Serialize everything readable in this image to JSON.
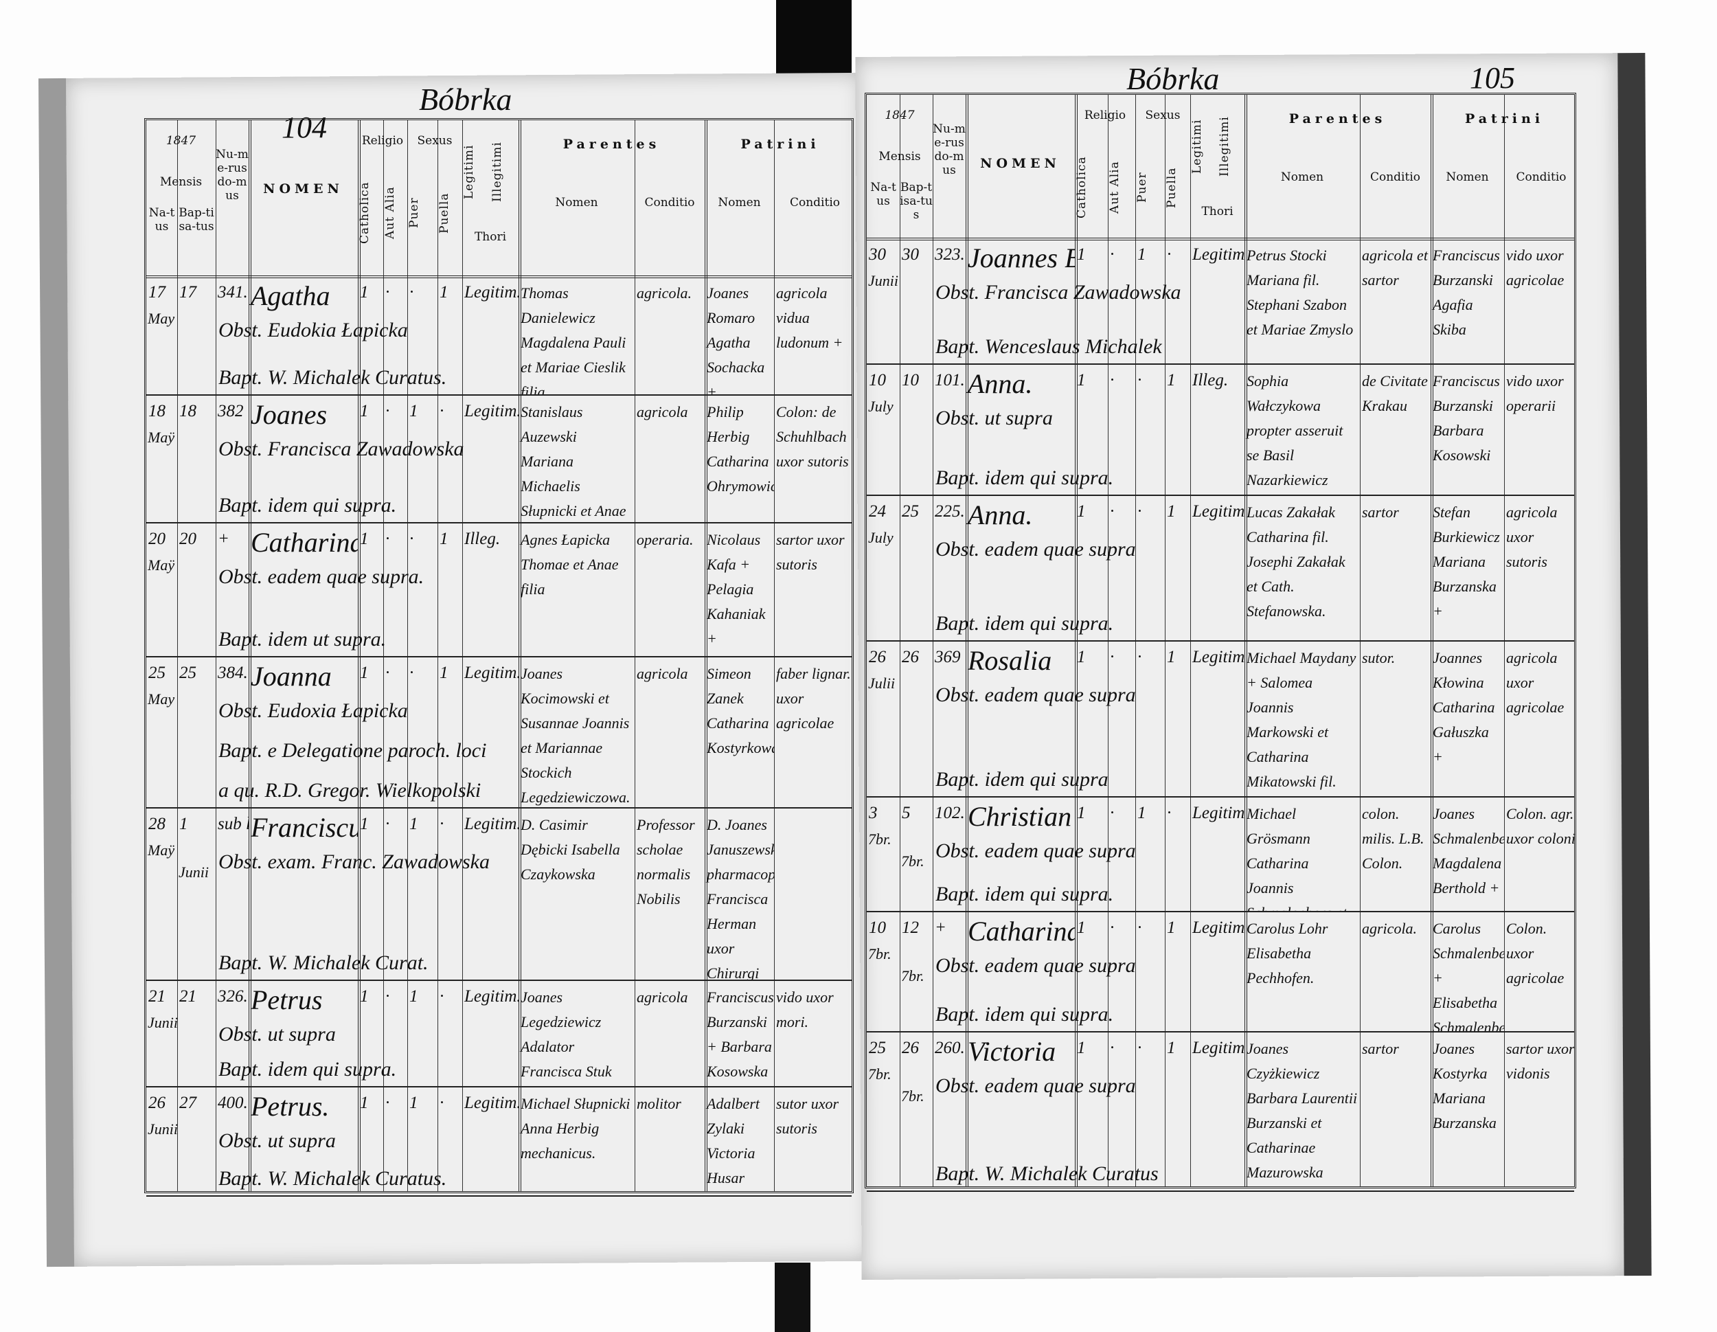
{
  "header": {
    "year": "1847",
    "mensis": "Mensis",
    "natus": "Na-tus",
    "baptisatus": "Bap-tisa-tus",
    "numerus_domus": "Nu-me-rus do-mus",
    "nomen": "NOMEN",
    "religio": "Religio",
    "catholica": "Catholica",
    "aut_alia": "Aut Alia",
    "sexus": "Sexus",
    "puer": "Puer",
    "puella": "Puella",
    "legitimi": "Legitimi",
    "illegitimi": "Illegitimi",
    "thori": "Thori",
    "parentes": "Parentes",
    "patrini": "Patrini",
    "col_nomen": "Nomen",
    "col_conditio": "Conditio"
  },
  "pages": [
    {
      "title": "Bóbrka",
      "page_number": "104",
      "entries": [
        {
          "natus": "17",
          "month": "May",
          "baptisatus": "17",
          "domus": "341.",
          "nomen": "Agatha",
          "catholica": "1",
          "aut_alia": "·",
          "puer": "·",
          "puella": "1",
          "thori": "Legitim.",
          "notes": [
            "Obst. Eudokia Łapicka",
            "Bapt. W. Michalek Curatus."
          ],
          "parentes_nomen": "Thomas Danielewicz Magdalena Pauli et Mariae Cieslik filia",
          "parentes_conditio": "agricola.",
          "patrini_nomen": "Joanes Romaro Agatha Sochacka +",
          "patrini_conditio": "agricola vidua ludonum +"
        },
        {
          "natus": "18",
          "month": "Maÿ",
          "baptisatus": "18",
          "domus": "382",
          "nomen": "Joanes",
          "catholica": "1",
          "aut_alia": "·",
          "puer": "1",
          "puella": "·",
          "thori": "Legitim.",
          "notes": [
            "Obst. Francisca Zawadowska",
            "Bapt. idem qui supra."
          ],
          "parentes_nomen": "Stanislaus Auzewski Mariana Michaelis Słupnicki et Anae Herbig filia",
          "parentes_conditio": "agricola",
          "patrini_nomen": "Philip Herbig Catharina Ohrymowicz",
          "patrini_conditio": "Colon: de Schuhlbach uxor sutoris"
        },
        {
          "natus": "20",
          "month": "Maÿ",
          "baptisatus": "20",
          "domus": "+",
          "nomen": "Catharina",
          "catholica": "1",
          "aut_alia": "·",
          "puer": "·",
          "puella": "1",
          "thori": "Illeg.",
          "notes": [
            "Obst. eadem quae supra.",
            "Bapt. idem ut supra."
          ],
          "parentes_nomen": "Agnes Łapicka Thomae et Anae filia",
          "parentes_conditio": "operaria.",
          "patrini_nomen": "Nicolaus Kafa + Pelagia Kahaniak +",
          "patrini_conditio": "sartor uxor sutoris"
        },
        {
          "natus": "25",
          "month": "May",
          "baptisatus": "25",
          "domus": "384.",
          "nomen": "Joanna",
          "catholica": "1",
          "aut_alia": "·",
          "puer": "·",
          "puella": "1",
          "thori": "Legitim.",
          "notes": [
            "Obst. Eudoxia Łapicka",
            "Bapt. e Delegatione paroch. loci",
            "a qu. R.D. Gregor. Wielkopolski"
          ],
          "parentes_nomen": "Joanes Kocimowski et Susannae Joannis et Mariannae Stockich Legedziewiczowa.",
          "parentes_conditio": "agricola",
          "patrini_nomen": "Simeon Zanek Catharina Kostyrkowa",
          "patrini_conditio": "faber lignar. uxor agricolae"
        },
        {
          "natus": "28",
          "month": "Maÿ",
          "baptisatus": "1",
          "bapt_month": "Junii",
          "domus": "sub la.",
          "nomen": "Franciscus Xaverius +",
          "catholica": "1",
          "aut_alia": "·",
          "puer": "1",
          "puella": "·",
          "thori": "Legitim.",
          "notes": [
            "Obst. exam. Franc. Zawadowska",
            "Bapt. W. Michalek Curat."
          ],
          "parentes_nomen": "D. Casimir Dębicki Isabella Czaykowska",
          "parentes_conditio": "Professor scholae normalis Nobilis",
          "patrini_nomen": "D. Joanes Januszewski pharmacop. Francisca Herman uxor Chirurgi",
          "patrini_conditio": ""
        },
        {
          "natus": "21",
          "month": "Junii",
          "baptisatus": "21",
          "domus": "326.",
          "nomen": "Petrus",
          "catholica": "1",
          "aut_alia": "·",
          "puer": "1",
          "puella": "·",
          "thori": "Legitim.",
          "notes": [
            "Obst. ut supra",
            "Bapt. idem qui supra."
          ],
          "parentes_nomen": "Joanes Legedziewicz Adalator Francisca Stuk",
          "parentes_conditio": "agricola",
          "patrini_nomen": "Franciscus Burzanski + Barbara Kosowska",
          "patrini_conditio": "vido uxor mori."
        },
        {
          "natus": "26",
          "month": "Junii",
          "baptisatus": "27",
          "domus": "400.",
          "nomen": "Petrus.",
          "catholica": "1",
          "aut_alia": "·",
          "puer": "1",
          "puella": "·",
          "thori": "Legitim.",
          "notes": [
            "Obst. ut supra",
            "Bapt. W. Michalek Curatus."
          ],
          "parentes_nomen": "Michael Słupnicki Anna Herbig mechanicus.",
          "parentes_conditio": "molitor",
          "patrini_nomen": "Adalbert Zylaki Victoria Husar",
          "patrini_conditio": "sutor uxor sutoris"
        }
      ]
    },
    {
      "title": "Bóbrka",
      "page_number": "105",
      "entries": [
        {
          "natus": "30",
          "month": "Junii",
          "baptisatus": "30",
          "domus": "323.",
          "nomen": "Joannes Bapt.",
          "catholica": "1",
          "aut_alia": "·",
          "puer": "1",
          "puella": "·",
          "thori": "Legitim.",
          "notes": [
            "Obst. Francisca Zawadowska",
            "Bapt. Wenceslaus Michalek"
          ],
          "parentes_nomen": "Petrus Stocki Mariana fil. Stephani Szabon et Mariae Zmyslo",
          "parentes_conditio": "agricola et sartor",
          "patrini_nomen": "Franciscus Burzanski Agafia Skiba",
          "patrini_conditio": "vido uxor agricolae"
        },
        {
          "natus": "10",
          "month": "July",
          "baptisatus": "10",
          "domus": "101.",
          "nomen": "Anna.",
          "catholica": "1",
          "aut_alia": "·",
          "puer": "·",
          "puella": "1",
          "thori": "Illeg.",
          "notes": [
            "Obst. ut supra",
            "Bapt. idem qui supra."
          ],
          "parentes_nomen": "Sophia Wałczykowa propter asseruit se Basil Nazarkiewicz Chandarm.",
          "parentes_conditio": "de Civitate Krakau",
          "patrini_nomen": "Franciscus Burzanski Barbara Kosowski",
          "patrini_conditio": "vido uxor operarii"
        },
        {
          "natus": "24",
          "month": "July",
          "baptisatus": "25",
          "domus": "225.",
          "nomen": "Anna.",
          "catholica": "1",
          "aut_alia": "·",
          "puer": "·",
          "puella": "1",
          "thori": "Legitim.",
          "notes": [
            "Obst. eadem quae supra",
            "Bapt. idem qui supra."
          ],
          "parentes_nomen": "Lucas Zakałak Catharina fil. Josephi Zakałak et Cath. Stefanowska.",
          "parentes_conditio": "sartor",
          "patrini_nomen": "Stefan Burkiewicz Mariana Burzanska +",
          "patrini_conditio": "agricola uxor sutoris"
        },
        {
          "natus": "26",
          "month": "Julii",
          "baptisatus": "26",
          "domus": "369",
          "nomen": "Rosalia",
          "catholica": "1",
          "aut_alia": "·",
          "puer": "·",
          "puella": "1",
          "thori": "Legitima",
          "notes": [
            "Obst. eadem quae supra",
            "Bapt. idem qui supra"
          ],
          "parentes_nomen": "Michael Maydany + Salomea Joannis Markowski et Catharina Mikatowski fil.",
          "parentes_conditio": "sutor.",
          "patrini_nomen": "Joannes Kłowina Catharina Gałuszka +",
          "patrini_conditio": "agricola uxor agricolae"
        },
        {
          "natus": "3",
          "month": "7br.",
          "baptisatus": "5",
          "bapt_month": "7br.",
          "domus": "102.",
          "nomen": "Christian +",
          "catholica": "1",
          "aut_alia": "·",
          "puer": "1",
          "puella": "·",
          "thori": "Legitim.",
          "notes": [
            "Obst. eadem quae supra",
            "Bapt. idem qui supra."
          ],
          "parentes_nomen": "Michael Grösmann Catharina Joannis Schmalenberg et Ana Gatz filia",
          "parentes_conditio": "colon. milis. L.B. Colon.",
          "patrini_nomen": "Joanes Schmalenberg Magdalena Berthold +",
          "patrini_conditio": "Colon. agr. uxor coloni"
        },
        {
          "natus": "10",
          "month": "7br.",
          "baptisatus": "12",
          "bapt_month": "7br.",
          "domus": "+",
          "nomen": "Catharina.",
          "catholica": "1",
          "aut_alia": "·",
          "puer": "·",
          "puella": "1",
          "thori": "Legitim.",
          "notes": [
            "Obst. eadem quae supra",
            "Bapt. idem qui supra."
          ],
          "parentes_nomen": "Carolus Lohr Elisabetha Pechhofen.",
          "parentes_conditio": "agricola.",
          "patrini_nomen": "Carolus Schmalenberg + Elisabetha Schmalenberg +",
          "patrini_conditio": "Colon. uxor agricolae"
        },
        {
          "natus": "25",
          "month": "7br.",
          "baptisatus": "26",
          "bapt_month": "7br.",
          "domus": "260.",
          "nomen": "Victoria",
          "catholica": "1",
          "aut_alia": "·",
          "puer": "·",
          "puella": "1",
          "thori": "Legitim.",
          "notes": [
            "Obst. eadem quae supra",
            "Bapt. W. Michalek Curatus"
          ],
          "parentes_nomen": "Joanes Czyżkiewicz Barbara Laurentii Burzanski et Catharinae Mazurowska",
          "parentes_conditio": "sartor",
          "patrini_nomen": "Joanes Kostyrka Mariana Burzanska",
          "patrini_conditio": "sartor uxor vidonis"
        }
      ]
    }
  ]
}
